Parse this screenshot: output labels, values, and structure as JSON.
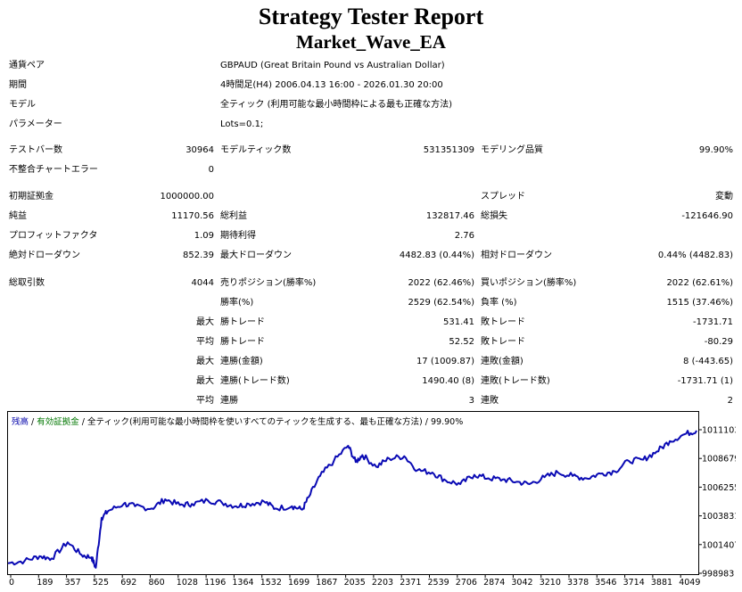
{
  "title": "Strategy Tester Report",
  "ea_name": "Market_Wave_EA",
  "info": [
    {
      "label": "通貨ペア",
      "value": "GBPAUD (Great Britain Pound vs Australian Dollar)"
    },
    {
      "label": "期間",
      "value": "4時間足(H4) 2006.04.13 16:00 - 2026.01.30 20:00"
    },
    {
      "label": "モデル",
      "value": "全ティック (利用可能な最小時間枠による最も正確な方法)"
    },
    {
      "label": "パラメーター",
      "value": "Lots=0.1;"
    }
  ],
  "stats_a": [
    {
      "label": "テストバー数",
      "value": "30964"
    },
    {
      "label": "不整合チャートエラー",
      "value": "0"
    },
    {
      "label": "初期証拠金",
      "value": "1000000.00"
    },
    {
      "label": "純益",
      "value": "11170.56"
    },
    {
      "label": "プロフィットファクタ",
      "value": "1.09"
    },
    {
      "label": "絶対ドローダウン",
      "value": "852.39"
    },
    {
      "label": "総取引数",
      "value": "4044"
    }
  ],
  "stats_b": [
    {
      "label": "モデルティック数",
      "value": "531351309"
    },
    {
      "label": "総利益",
      "value": "132817.46"
    },
    {
      "label": "期待利得",
      "value": "2.76"
    },
    {
      "label": "最大ドローダウン",
      "value": "4482.83 (0.44%)"
    },
    {
      "label": "売りポジション(勝率%)",
      "value": "2022 (62.46%)"
    },
    {
      "label": "勝率(%)",
      "value": "2529 (62.54%)"
    },
    {
      "label": "勝トレード",
      "prefix": "最大",
      "value": "531.41"
    },
    {
      "label": "勝トレード",
      "prefix": "平均",
      "value": "52.52"
    },
    {
      "label": "連勝(金額)",
      "prefix": "最大",
      "value": "17 (1009.87)"
    },
    {
      "label": "連勝(トレード数)",
      "prefix": "最大",
      "value": "1490.40 (8)"
    },
    {
      "label": "連勝",
      "prefix": "平均",
      "value": "3"
    }
  ],
  "stats_c": [
    {
      "label": "モデリング品質",
      "value": "99.90%"
    },
    {
      "label": "スプレッド",
      "value": "変動"
    },
    {
      "label": "総損失",
      "value": "-121646.90"
    },
    {
      "label": "相対ドローダウン",
      "value": "0.44% (4482.83)"
    },
    {
      "label": "買いポジション(勝率%)",
      "value": "2022 (62.61%)"
    },
    {
      "label": "負率 (%)",
      "value": "1515 (37.46%)"
    },
    {
      "label": "敗トレード",
      "value": "-1731.71"
    },
    {
      "label": "敗トレード",
      "value": "-80.29"
    },
    {
      "label": "連敗(金額)",
      "value": "8 (-443.65)"
    },
    {
      "label": "連敗(トレード数)",
      "value": "-1731.71 (1)"
    },
    {
      "label": "連敗",
      "value": "2"
    }
  ],
  "chart_caption": {
    "balance": "残高",
    "equity": "有効証拠金",
    "model": "全ティック(利用可能な最小時間枠を使いすべてのティックを生成する、最も正確な方法)",
    "quality": "99.90%"
  },
  "chart_data": {
    "type": "line",
    "series": [
      {
        "name": "残高",
        "x": [
          0,
          100,
          189,
          260,
          357,
          440,
          500,
          525,
          560,
          600,
          692,
          760,
          860,
          940,
          1028,
          1100,
          1196,
          1280,
          1364,
          1440,
          1532,
          1600,
          1699,
          1760,
          1800,
          1867,
          1950,
          2035,
          2080,
          2120,
          2203,
          2280,
          2371,
          2450,
          2539,
          2620,
          2706,
          2790,
          2874,
          2960,
          3042,
          3120,
          3210,
          3290,
          3378,
          3460,
          3546,
          3630,
          3714,
          3800,
          3881,
          3960,
          4049,
          4120
        ],
        "y": [
          999700,
          999900,
          1000300,
          1000100,
          1001500,
          1000400,
          1000200,
          999300,
          1003600,
          1004200,
          1004800,
          1004600,
          1004400,
          1005200,
          1004700,
          1004800,
          1005100,
          1004900,
          1004600,
          1004800,
          1005000,
          1004400,
          1004600,
          1004300,
          1005400,
          1007200,
          1008500,
          1009800,
          1008400,
          1009000,
          1008000,
          1008700,
          1008900,
          1007700,
          1007500,
          1006800,
          1006500,
          1007300,
          1007000,
          1006900,
          1006700,
          1006500,
          1007100,
          1007500,
          1007200,
          1007000,
          1007400,
          1007600,
          1008500,
          1008600,
          1009300,
          1010200,
          1010800,
          1011103
        ]
      }
    ],
    "x_ticks": [
      "0",
      "189",
      "357",
      "525",
      "692",
      "860",
      "1028",
      "1196",
      "1364",
      "1532",
      "1699",
      "1867",
      "2035",
      "2203",
      "2371",
      "2539",
      "2706",
      "2874",
      "3042",
      "3210",
      "3378",
      "3546",
      "3714",
      "3881",
      "4049"
    ],
    "y_ticks": [
      "1011103",
      "1008679",
      "1006255",
      "1003831",
      "1001407",
      "998983"
    ],
    "ylim": [
      998983,
      1011103
    ],
    "xlim": [
      0,
      4130
    ],
    "colors": {
      "line": "#0a0ab4",
      "frame": "#000000",
      "balance_caption": "#0000aa",
      "equity_caption": "#007700"
    }
  }
}
